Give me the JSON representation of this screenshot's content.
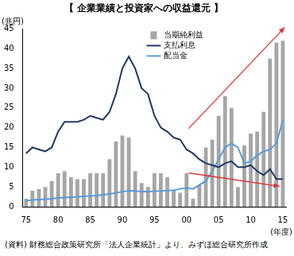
{
  "chart_data": {
    "type": "bar",
    "title": "【 企業業績と投資家への収益還元 】",
    "y_label": "(兆円)",
    "x_label": "(年度)",
    "source": "(資料) 財務総合政策研究所「法人企業統計」より、みずほ総合研究所作成",
    "categories": [
      "75",
      null,
      null,
      null,
      null,
      "80",
      null,
      null,
      null,
      null,
      "85",
      null,
      null,
      null,
      null,
      "90",
      null,
      null,
      null,
      null,
      "95",
      null,
      null,
      null,
      null,
      "00",
      null,
      null,
      null,
      null,
      "05",
      null,
      null,
      null,
      null,
      "10",
      null,
      null,
      null,
      null,
      "15"
    ],
    "series": [
      {
        "name": "当期純利益",
        "type": "bar",
        "color": "#a6a6a6",
        "values": [
          2,
          4,
          4.5,
          5,
          6.5,
          8.5,
          9,
          7.5,
          7,
          7,
          8.5,
          8.5,
          8.5,
          12,
          16.5,
          18,
          17.5,
          9,
          6,
          5,
          8.5,
          8.5,
          7.5,
          4,
          3.5,
          8.5,
          2,
          5.5,
          15,
          17,
          23,
          28,
          25,
          5,
          15.5,
          18.5,
          19,
          24,
          37.5,
          41.5,
          42
        ]
      },
      {
        "name": "支払利息",
        "type": "line",
        "color": "#1f3864",
        "values": [
          13.5,
          15,
          14.5,
          14,
          15,
          19,
          21.5,
          21.5,
          21.5,
          22,
          23,
          22.5,
          22,
          24,
          28.5,
          35,
          38,
          35,
          30,
          28.5,
          23,
          20,
          19,
          17.5,
          17,
          14.5,
          13.5,
          12,
          11,
          10.5,
          10,
          11,
          11.5,
          10,
          10,
          10.5,
          9,
          8,
          9.5,
          7,
          7
        ]
      },
      {
        "name": "配当金",
        "type": "line",
        "color": "#5b9bd5",
        "values": [
          1.5,
          1.7,
          1.8,
          1.9,
          2,
          2.2,
          2.3,
          2.4,
          2.5,
          2.6,
          2.7,
          2.8,
          3,
          3.2,
          3.5,
          3.8,
          4,
          4,
          3.8,
          3.8,
          3.9,
          4,
          4.1,
          4.2,
          4.5,
          4.8,
          4.5,
          5.5,
          6.5,
          9,
          12,
          15,
          16,
          15,
          11,
          11.5,
          13,
          14,
          14.5,
          16,
          22
        ]
      }
    ],
    "ylim": [
      0,
      45
    ],
    "yticks": [
      0,
      5,
      10,
      15,
      20,
      25,
      30,
      35,
      40,
      45
    ],
    "grid": false,
    "legend": "top"
  }
}
